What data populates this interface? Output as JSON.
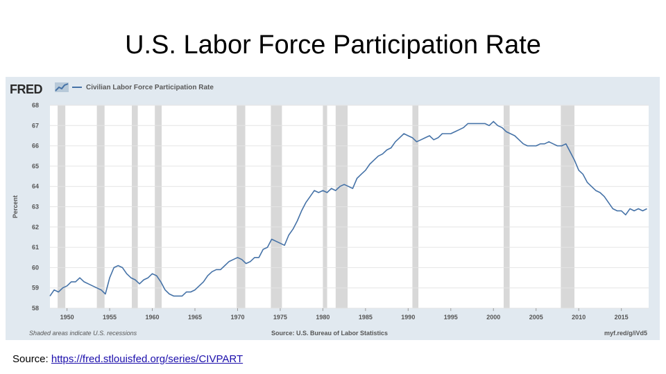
{
  "slide": {
    "title": "U.S. Labor Force Participation Rate",
    "source_prefix": "Source: ",
    "source_url": "https://fred.stlouisfed.org/series/CIVPART"
  },
  "fred": {
    "logo_text": "FRED",
    "logo_icon": "line-graph-icon",
    "footer_left": "Shaded areas indicate U.S. recessions",
    "footer_center": "Source: U.S. Bureau of Labor Statistics",
    "footer_right": "myf.red/g/iVd5"
  },
  "colors": {
    "line": "#4572a7",
    "recession": "#d8d8d8",
    "plot_bg": "#ffffff",
    "panel_bg": "#e1e9f0"
  },
  "chart_data": {
    "type": "line",
    "title": "",
    "xlabel": "",
    "ylabel": "Percent",
    "xlim": [
      1948,
      2018.2
    ],
    "ylim": [
      58,
      68
    ],
    "xticks": [
      1950,
      1955,
      1960,
      1965,
      1970,
      1975,
      1980,
      1985,
      1990,
      1995,
      2000,
      2005,
      2010,
      2015
    ],
    "yticks": [
      58,
      59,
      60,
      61,
      62,
      63,
      64,
      65,
      66,
      67,
      68
    ],
    "grid": "horizontal",
    "legend_position": "top-left",
    "series": [
      {
        "name": "Civilian Labor Force Participation Rate",
        "x": [
          1948.0,
          1948.5,
          1949.0,
          1949.5,
          1950.0,
          1950.5,
          1951.0,
          1951.5,
          1952.0,
          1952.5,
          1953.0,
          1953.5,
          1954.0,
          1954.5,
          1955.0,
          1955.5,
          1956.0,
          1956.5,
          1957.0,
          1957.5,
          1958.0,
          1958.5,
          1959.0,
          1959.5,
          1960.0,
          1960.5,
          1961.0,
          1961.5,
          1962.0,
          1962.5,
          1963.0,
          1963.5,
          1964.0,
          1964.5,
          1965.0,
          1965.5,
          1966.0,
          1966.5,
          1967.0,
          1967.5,
          1968.0,
          1968.5,
          1969.0,
          1969.5,
          1970.0,
          1970.5,
          1971.0,
          1971.5,
          1972.0,
          1972.5,
          1973.0,
          1973.5,
          1974.0,
          1974.5,
          1975.0,
          1975.5,
          1976.0,
          1976.5,
          1977.0,
          1977.5,
          1978.0,
          1978.5,
          1979.0,
          1979.5,
          1980.0,
          1980.5,
          1981.0,
          1981.5,
          1982.0,
          1982.5,
          1983.0,
          1983.5,
          1984.0,
          1984.5,
          1985.0,
          1985.5,
          1986.0,
          1986.5,
          1987.0,
          1987.5,
          1988.0,
          1988.5,
          1989.0,
          1989.5,
          1990.0,
          1990.5,
          1991.0,
          1991.5,
          1992.0,
          1992.5,
          1993.0,
          1993.5,
          1994.0,
          1994.5,
          1995.0,
          1995.5,
          1996.0,
          1996.5,
          1997.0,
          1997.5,
          1998.0,
          1998.5,
          1999.0,
          1999.5,
          2000.0,
          2000.5,
          2001.0,
          2001.5,
          2002.0,
          2002.5,
          2003.0,
          2003.5,
          2004.0,
          2004.5,
          2005.0,
          2005.5,
          2006.0,
          2006.5,
          2007.0,
          2007.5,
          2008.0,
          2008.5,
          2009.0,
          2009.5,
          2010.0,
          2010.5,
          2011.0,
          2011.5,
          2012.0,
          2012.5,
          2013.0,
          2013.5,
          2014.0,
          2014.5,
          2015.0,
          2015.5,
          2016.0,
          2016.5,
          2017.0,
          2017.5,
          2018.0
        ],
        "values": [
          58.6,
          58.9,
          58.8,
          59.0,
          59.1,
          59.3,
          59.3,
          59.5,
          59.3,
          59.2,
          59.1,
          59.0,
          58.9,
          58.7,
          59.5,
          60.0,
          60.1,
          60.0,
          59.7,
          59.5,
          59.4,
          59.2,
          59.4,
          59.5,
          59.7,
          59.6,
          59.3,
          58.9,
          58.7,
          58.6,
          58.6,
          58.6,
          58.8,
          58.8,
          58.9,
          59.1,
          59.3,
          59.6,
          59.8,
          59.9,
          59.9,
          60.1,
          60.3,
          60.4,
          60.5,
          60.4,
          60.2,
          60.3,
          60.5,
          60.5,
          60.9,
          61.0,
          61.4,
          61.3,
          61.2,
          61.1,
          61.6,
          61.9,
          62.3,
          62.8,
          63.2,
          63.5,
          63.8,
          63.7,
          63.8,
          63.7,
          63.9,
          63.8,
          64.0,
          64.1,
          64.0,
          63.9,
          64.4,
          64.6,
          64.8,
          65.1,
          65.3,
          65.5,
          65.6,
          65.8,
          65.9,
          66.2,
          66.4,
          66.6,
          66.5,
          66.4,
          66.2,
          66.3,
          66.4,
          66.5,
          66.3,
          66.4,
          66.6,
          66.6,
          66.6,
          66.7,
          66.8,
          66.9,
          67.1,
          67.1,
          67.1,
          67.1,
          67.1,
          67.0,
          67.2,
          67.0,
          66.9,
          66.7,
          66.6,
          66.5,
          66.3,
          66.1,
          66.0,
          66.0,
          66.0,
          66.1,
          66.1,
          66.2,
          66.1,
          66.0,
          66.0,
          66.1,
          65.7,
          65.3,
          64.8,
          64.6,
          64.2,
          64.0,
          63.8,
          63.7,
          63.5,
          63.2,
          62.9,
          62.8,
          62.8,
          62.6,
          62.9,
          62.8,
          62.9,
          62.8,
          62.9
        ]
      }
    ],
    "recessions": [
      [
        1948.9,
        1949.8
      ],
      [
        1953.5,
        1954.4
      ],
      [
        1957.6,
        1958.3
      ],
      [
        1960.3,
        1961.1
      ],
      [
        1969.9,
        1970.9
      ],
      [
        1973.9,
        1975.2
      ],
      [
        1980.0,
        1980.5
      ],
      [
        1981.5,
        1982.9
      ],
      [
        1990.5,
        1991.2
      ],
      [
        2001.2,
        2001.9
      ],
      [
        2007.9,
        2009.5
      ]
    ]
  }
}
